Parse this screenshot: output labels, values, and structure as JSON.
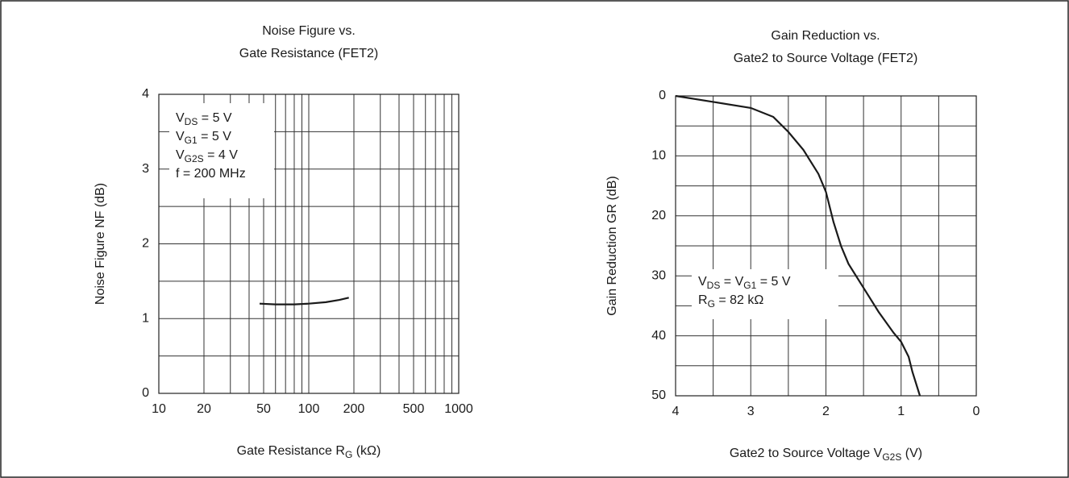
{
  "chart_data": [
    {
      "type": "line",
      "title": [
        "Noise Figure vs.",
        "Gate Resistance (FET2)"
      ],
      "x_label": [
        "Gate Resistance R",
        "G",
        " (kΩ)"
      ],
      "y_label": "Noise Figure NF (dB)",
      "xscale": "log",
      "xlim": [
        10,
        1000
      ],
      "xticks": [
        10,
        20,
        50,
        100,
        200,
        500,
        1000
      ],
      "xgrid": [
        30,
        40,
        60,
        70,
        80,
        90,
        300,
        400,
        600,
        700,
        800,
        900
      ],
      "ylim": [
        0,
        4
      ],
      "yticks": [
        0,
        1,
        2,
        3,
        4
      ],
      "ygrid": [
        0.5,
        1.5,
        2.5,
        3.5
      ],
      "annotation": [
        [
          "V",
          "DS",
          " = 5 V"
        ],
        [
          "V",
          "G1",
          " = 5 V"
        ],
        [
          "V",
          "G2S",
          " = 4 V"
        ],
        [
          "f = 200 MHz"
        ]
      ],
      "series": [
        {
          "color": "#1a1a1a",
          "x": [
            47,
            60,
            80,
            100,
            130,
            160,
            185
          ],
          "values": [
            1.2,
            1.19,
            1.19,
            1.2,
            1.22,
            1.25,
            1.28
          ]
        }
      ]
    },
    {
      "type": "line",
      "title": [
        "Gain Reduction vs.",
        "Gate2 to Source Voltage (FET2)"
      ],
      "x_label": [
        "Gate2 to Source Voltage V",
        "G2S",
        " (V)"
      ],
      "y_label": "Gain Reduction GR (dB)",
      "xscale": "linear",
      "xinvert": true,
      "yinvert": true,
      "xlim": [
        0,
        4
      ],
      "xticks": [
        4,
        3,
        2,
        1,
        0
      ],
      "xgrid": [
        3.5,
        2.5,
        1.5,
        0.5
      ],
      "ylim": [
        0,
        50
      ],
      "yticks": [
        0,
        10,
        20,
        30,
        40,
        50
      ],
      "ygrid": [
        5,
        15,
        25,
        35,
        45
      ],
      "annotation": [
        [
          "V",
          "DS",
          " = V",
          "G1",
          " = 5 V"
        ],
        [
          "R",
          "G",
          " = 82 kΩ"
        ]
      ],
      "series": [
        {
          "color": "#1a1a1a",
          "x": [
            4,
            3.5,
            3,
            2.7,
            2.5,
            2.3,
            2.1,
            2,
            1.9,
            1.8,
            1.7,
            1.5,
            1.3,
            1.1,
            1,
            0.9,
            0.85,
            0.75
          ],
          "values": [
            0,
            1,
            2,
            3.5,
            6,
            9,
            13,
            16,
            21,
            25,
            28,
            32,
            36,
            39.5,
            41,
            43.5,
            46,
            50
          ]
        }
      ]
    }
  ]
}
